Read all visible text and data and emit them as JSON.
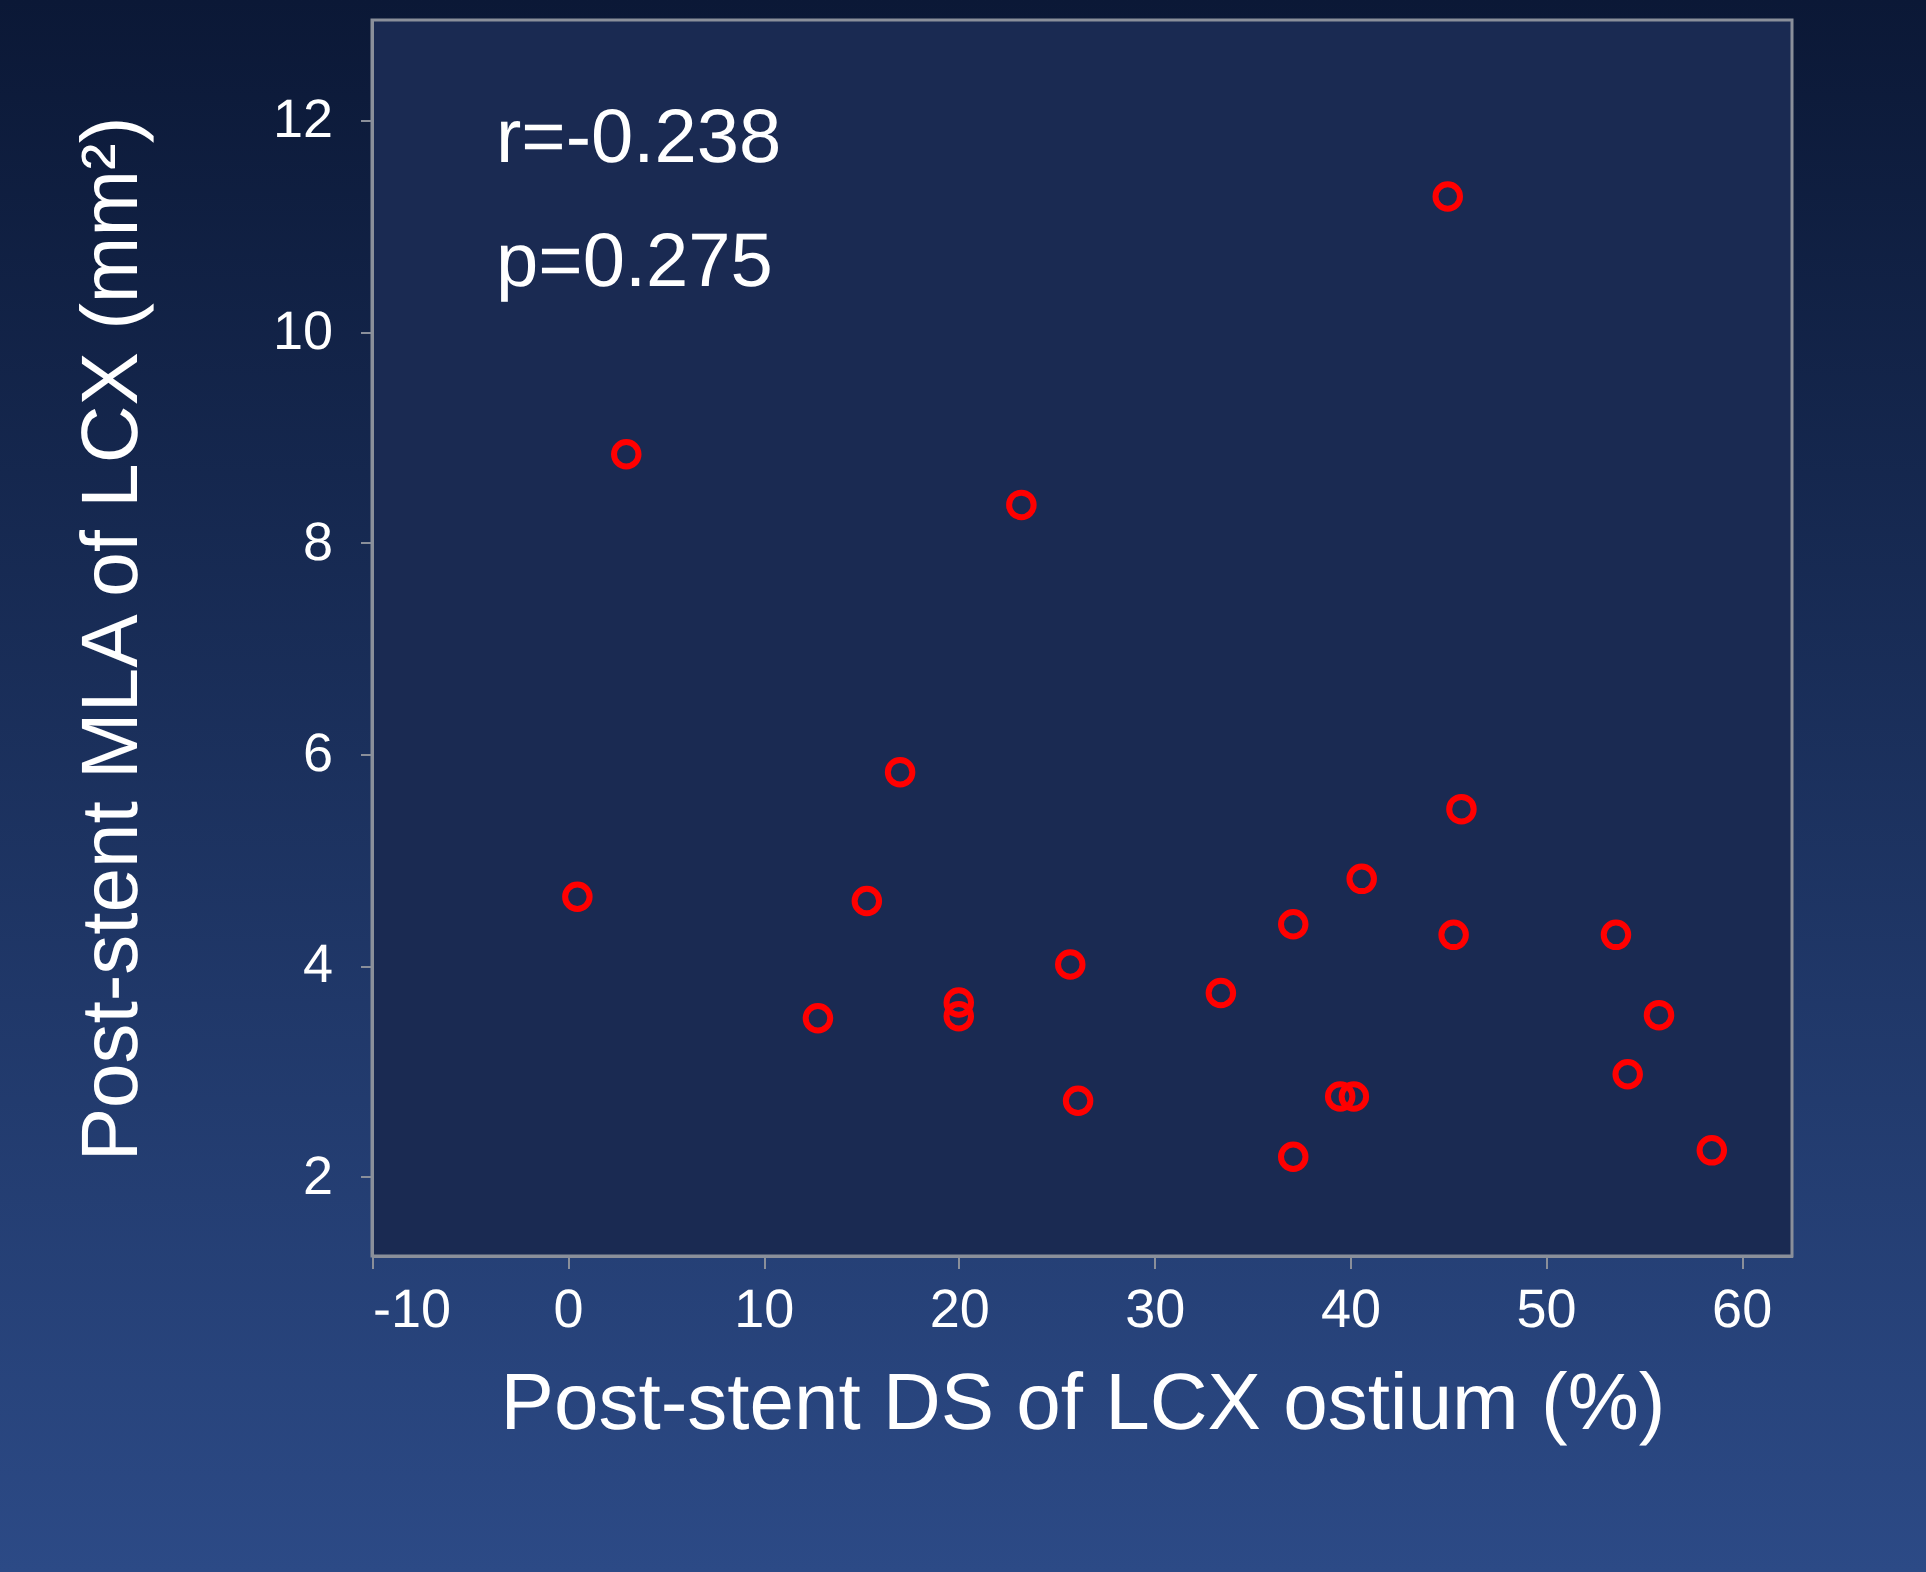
{
  "chart_data": {
    "type": "scatter",
    "xlabel": "Post-stent DS of LCX ostium (%)",
    "ylabel": "Post-stent MLA of LCX (mm²)",
    "annotations": [
      "r=-0.238",
      "p=0.275"
    ],
    "xlim": [
      -10,
      62.6
    ],
    "xticks": [
      -10,
      0,
      10,
      20,
      30,
      40,
      50,
      60
    ],
    "ylim": [
      1.25,
      12.95
    ],
    "yticks": [
      2,
      4,
      6,
      8,
      10,
      12
    ],
    "grid": false,
    "marker": "circle",
    "series": [
      {
        "color": "#ff0000",
        "x": [
          0.5,
          3.0,
          12.8,
          15.3,
          17.0,
          20.0,
          20.0,
          23.2,
          25.7,
          26.1,
          33.4,
          37.1,
          37.1,
          39.5,
          40.2,
          40.6,
          45.0,
          45.3,
          45.7,
          53.6,
          54.2,
          55.8,
          58.5
        ],
        "values": [
          4.65,
          8.84,
          3.5,
          4.61,
          5.83,
          3.65,
          3.52,
          8.36,
          4.01,
          2.72,
          3.74,
          4.39,
          2.19,
          2.76,
          2.76,
          4.82,
          11.28,
          4.29,
          5.48,
          4.29,
          2.97,
          3.53,
          2.25
        ]
      }
    ]
  }
}
